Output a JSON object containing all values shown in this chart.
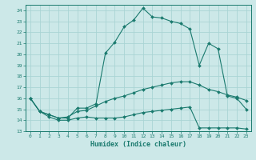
{
  "xlabel": "Humidex (Indice chaleur)",
  "bg_color": "#cce8e8",
  "grid_color": "#aad4d4",
  "line_color": "#1a7a6e",
  "xlim": [
    -0.5,
    23.5
  ],
  "ylim": [
    13,
    24.5
  ],
  "xticks": [
    0,
    1,
    2,
    3,
    4,
    5,
    6,
    7,
    8,
    9,
    10,
    11,
    12,
    13,
    14,
    15,
    16,
    17,
    18,
    19,
    20,
    21,
    22,
    23
  ],
  "yticks": [
    13,
    14,
    15,
    16,
    17,
    18,
    19,
    20,
    21,
    22,
    23,
    24
  ],
  "hours": [
    0,
    1,
    2,
    3,
    4,
    5,
    6,
    7,
    8,
    9,
    10,
    11,
    12,
    13,
    14,
    15,
    16,
    17,
    18,
    19,
    20,
    21,
    22,
    23
  ],
  "line_max": [
    16.0,
    14.8,
    14.5,
    14.2,
    14.2,
    15.1,
    15.1,
    15.5,
    20.1,
    21.1,
    22.5,
    23.1,
    24.2,
    23.4,
    23.3,
    23.0,
    22.8,
    22.3,
    19.0,
    21.0,
    20.5,
    16.2,
    16.0,
    15.0
  ],
  "line_mean": [
    16.0,
    14.8,
    14.5,
    14.2,
    14.3,
    14.8,
    14.9,
    15.3,
    15.7,
    16.0,
    16.2,
    16.5,
    16.8,
    17.0,
    17.2,
    17.4,
    17.5,
    17.5,
    17.2,
    16.8,
    16.6,
    16.3,
    16.1,
    15.8
  ],
  "line_min": [
    16.0,
    14.8,
    14.3,
    14.0,
    14.0,
    14.2,
    14.3,
    14.2,
    14.2,
    14.2,
    14.3,
    14.5,
    14.7,
    14.8,
    14.9,
    15.0,
    15.1,
    15.2,
    13.3,
    13.3,
    13.3,
    13.3,
    13.3,
    13.2
  ]
}
